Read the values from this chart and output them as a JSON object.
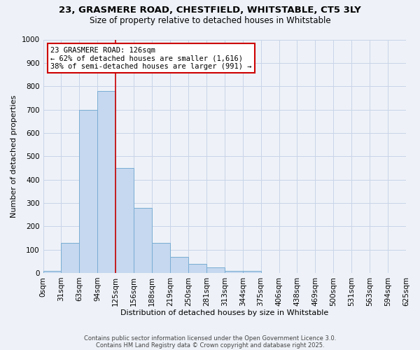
{
  "title": "23, GRASMERE ROAD, CHESTFIELD, WHITSTABLE, CT5 3LY",
  "subtitle": "Size of property relative to detached houses in Whitstable",
  "xlabel": "Distribution of detached houses by size in Whitstable",
  "ylabel": "Number of detached properties",
  "background_color": "#eef2f8",
  "bar_color": "#c5d8ef",
  "bar_edge_color": "#7aadd4",
  "grid_color": "#c8d4e8",
  "categories": [
    "0sqm",
    "31sqm",
    "63sqm",
    "94sqm",
    "125sqm",
    "156sqm",
    "188sqm",
    "219sqm",
    "250sqm",
    "281sqm",
    "313sqm",
    "344sqm",
    "375sqm",
    "406sqm",
    "438sqm",
    "469sqm",
    "500sqm",
    "531sqm",
    "563sqm",
    "594sqm",
    "625sqm"
  ],
  "bar_values": [
    8,
    130,
    700,
    780,
    450,
    280,
    130,
    70,
    40,
    25,
    10,
    8,
    0,
    0,
    0,
    0,
    0,
    0,
    0,
    0
  ],
  "property_size_idx": 4,
  "annotation_line1": "23 GRASMERE ROAD: 126sqm",
  "annotation_line2": "← 62% of detached houses are smaller (1,616)",
  "annotation_line3": "38% of semi-detached houses are larger (991) →",
  "vline_color": "#cc0000",
  "annotation_box_facecolor": "#ffffff",
  "annotation_box_edgecolor": "#cc0000",
  "ylim": [
    0,
    1000
  ],
  "yticks": [
    0,
    100,
    200,
    300,
    400,
    500,
    600,
    700,
    800,
    900,
    1000
  ],
  "bin_width": 31,
  "footer_line1": "Contains HM Land Registry data © Crown copyright and database right 2025.",
  "footer_line2": "Contains public sector information licensed under the Open Government Licence 3.0."
}
